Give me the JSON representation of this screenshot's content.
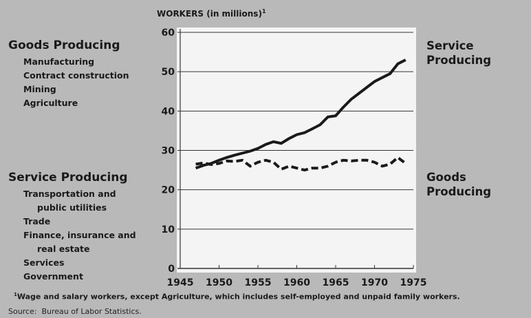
{
  "chart_data": {
    "type": "line",
    "y_label": "WORKERS (in millions)",
    "y_label_note": "1",
    "x": [
      1947,
      1948,
      1949,
      1950,
      1951,
      1952,
      1953,
      1954,
      1955,
      1956,
      1957,
      1958,
      1959,
      1960,
      1961,
      1962,
      1963,
      1964,
      1965,
      1966,
      1967,
      1968,
      1969,
      1970,
      1971,
      1972,
      1973,
      1974
    ],
    "series": [
      {
        "name": "Service Producing",
        "color": "#1a1a1a",
        "dashed": false,
        "values": [
          25.5,
          26.2,
          26.7,
          27.5,
          28.2,
          28.8,
          29.3,
          29.8,
          30.5,
          31.5,
          32.2,
          31.8,
          33,
          34,
          34.5,
          35.5,
          36.5,
          38.5,
          38.8,
          41,
          43,
          44.5,
          46,
          47.5,
          48.5,
          49.5,
          52,
          53
        ]
      },
      {
        "name": "Goods Producing",
        "color": "#1a1a1a",
        "dashed": true,
        "values": [
          26.5,
          26.8,
          26.4,
          26.7,
          27.3,
          27.2,
          27.5,
          26,
          27,
          27.5,
          27,
          25.2,
          26,
          25.5,
          25,
          25.5,
          25.5,
          26,
          27,
          27.5,
          27.3,
          27.5,
          27.5,
          27,
          26,
          26.5,
          28.2,
          26.7
        ]
      }
    ],
    "xlim": [
      1945,
      1975
    ],
    "xticks": [
      1945,
      1950,
      1955,
      1960,
      1965,
      1970,
      1975
    ],
    "ylim": [
      0,
      60
    ],
    "yticks": [
      0,
      10,
      20,
      30,
      40,
      50,
      60
    ],
    "grid": true,
    "left_groups": [
      {
        "title": "Goods Producing",
        "items": [
          "Manufacturing",
          "Contract construction",
          "Mining",
          "Agriculture"
        ]
      },
      {
        "title": "Service Producing",
        "items": [
          "Transportation and public utilities",
          "Trade",
          "Finance, insurance and real estate",
          "Services",
          "Government"
        ]
      }
    ],
    "footnote": {
      "marker": "1",
      "text": "Wage and salary workers, except Agriculture, which includes self-employed and unpaid family workers."
    },
    "source": "Source:  Bureau of Labor Statistics."
  }
}
